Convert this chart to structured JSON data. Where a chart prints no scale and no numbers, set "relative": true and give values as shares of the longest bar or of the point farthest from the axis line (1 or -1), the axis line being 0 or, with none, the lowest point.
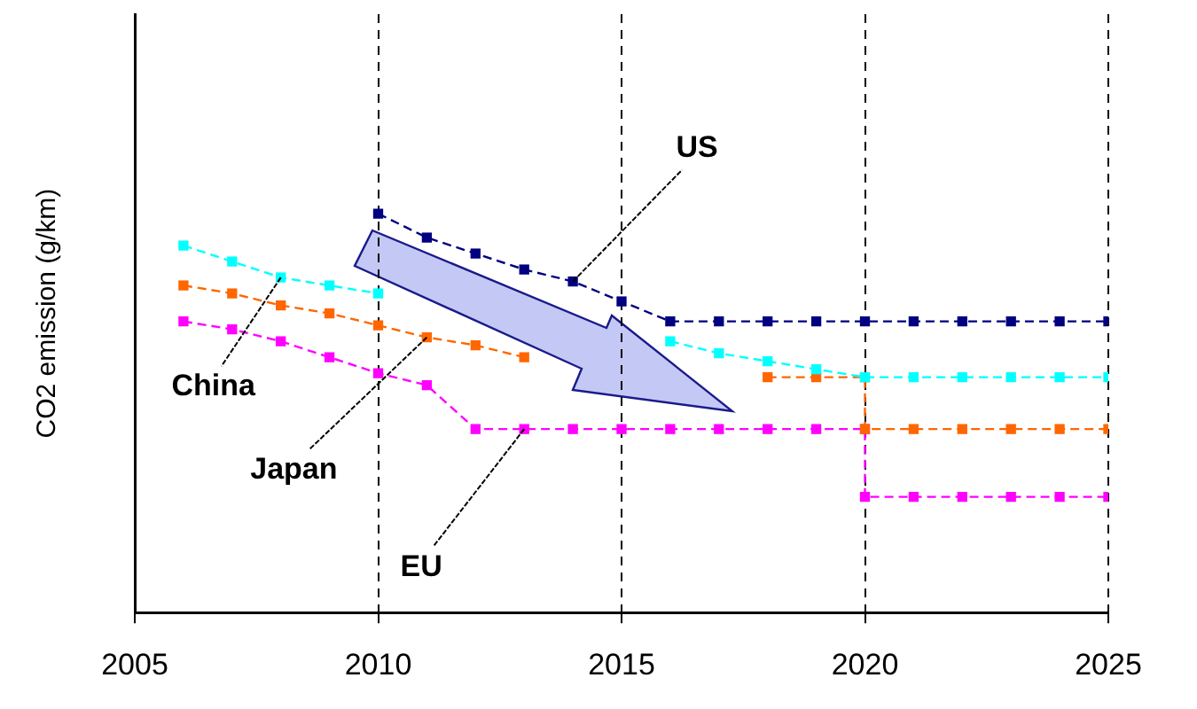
{
  "chart_data": {
    "type": "line",
    "ylabel": "CO2 emission (g/km)",
    "relative": true,
    "xlim": [
      2005,
      2025
    ],
    "xticks": [
      2005,
      2010,
      2015,
      2020,
      2025
    ],
    "grid": "x",
    "legend": false,
    "marker": "square",
    "line_style": "dashed",
    "series": [
      {
        "name": "US",
        "color": "#000080",
        "x": [
          2010,
          2011,
          2012,
          2013,
          2014,
          2015,
          2016,
          2017,
          2018,
          2019,
          2020,
          2021,
          2022,
          2023,
          2024,
          2025
        ],
        "values": [
          1,
          0.94,
          0.9,
          0.86,
          0.83,
          0.78,
          0.73,
          0.73,
          0.73,
          0.73,
          0.73,
          0.73,
          0.73,
          0.73,
          0.73,
          0.73
        ]
      },
      {
        "name": "China",
        "color": "#00ffff",
        "x": [
          2006,
          2007,
          2008,
          2009,
          2010,
          2011,
          2012,
          2013,
          2014,
          2015,
          2016,
          2017,
          2018,
          2019,
          2020,
          2021,
          2022,
          2023,
          2024,
          2025
        ],
        "values": [
          0.92,
          0.88,
          0.84,
          0.82,
          0.8,
          null,
          null,
          null,
          null,
          null,
          0.68,
          0.65,
          0.63,
          0.61,
          0.59,
          0.59,
          0.59,
          0.59,
          0.59,
          0.59
        ]
      },
      {
        "name": "Japan",
        "color": "#ff6600",
        "x": [
          2006,
          2007,
          2008,
          2009,
          2010,
          2011,
          2012,
          2013,
          2014,
          2015,
          2016,
          2017,
          2018,
          2019,
          2020,
          2020,
          2021,
          2022,
          2023,
          2024,
          2025
        ],
        "values": [
          0.82,
          0.8,
          0.77,
          0.75,
          0.72,
          0.69,
          0.67,
          0.64,
          null,
          null,
          null,
          null,
          0.59,
          0.59,
          0.59,
          0.46,
          0.46,
          0.46,
          0.46,
          0.46,
          0.46
        ]
      },
      {
        "name": "EU",
        "color": "#ff00ff",
        "x": [
          2006,
          2007,
          2008,
          2009,
          2010,
          2011,
          2012,
          2013,
          2014,
          2015,
          2016,
          2017,
          2018,
          2019,
          2020,
          2020,
          2021,
          2022,
          2023,
          2024,
          2025
        ],
        "values": [
          0.73,
          0.71,
          0.68,
          0.64,
          0.6,
          0.57,
          0.46,
          0.46,
          0.46,
          0.46,
          0.46,
          0.46,
          0.46,
          0.46,
          0.46,
          0.29,
          0.29,
          0.29,
          0.29,
          0.29,
          0.29
        ]
      }
    ]
  }
}
